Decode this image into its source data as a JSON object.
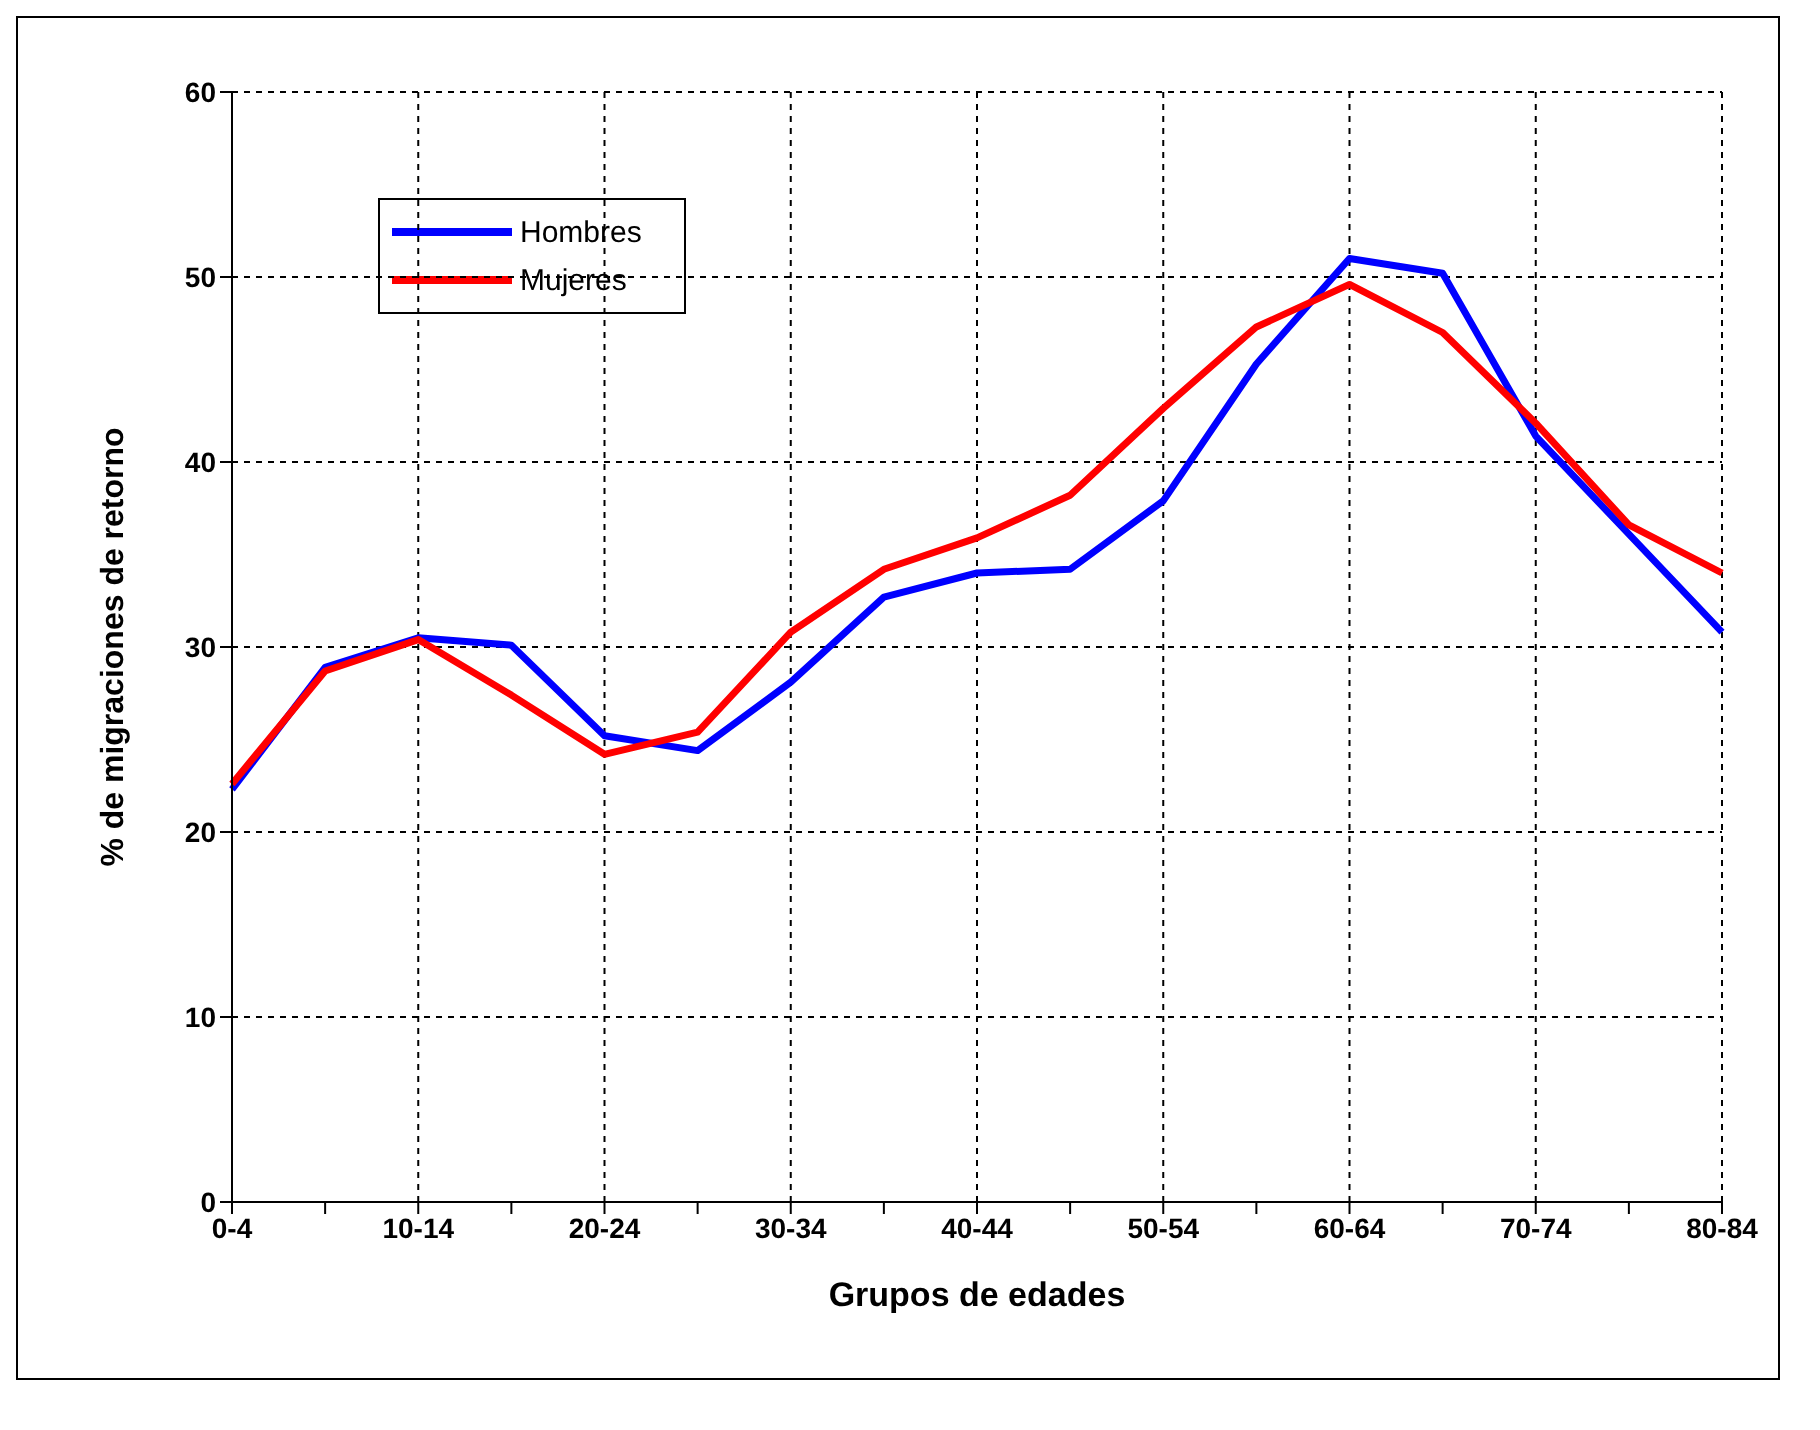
{
  "chart_data": {
    "type": "line",
    "xlabel": "Grupos de edades",
    "ylabel": "% de migraciones de retorno",
    "categories": [
      "0-4",
      null,
      "10-14",
      null,
      "20-24",
      null,
      "30-34",
      null,
      "40-44",
      null,
      "50-54",
      null,
      "60-64",
      null,
      "70-74",
      null,
      "80-84"
    ],
    "series": [
      {
        "name": "Hombres",
        "color": "#0000ff",
        "values": [
          22.3,
          28.9,
          30.5,
          30.1,
          25.2,
          24.4,
          28.1,
          32.7,
          34.0,
          34.2,
          37.9,
          45.3,
          51.0,
          50.2,
          41.4,
          36.1,
          30.8
        ]
      },
      {
        "name": "Mujeres",
        "color": "#ff0000",
        "values": [
          22.6,
          28.7,
          30.4,
          27.4,
          24.2,
          25.4,
          30.8,
          34.2,
          35.9,
          38.2,
          42.9,
          47.3,
          49.6,
          47.0,
          42.1,
          36.6,
          34.0
        ]
      }
    ],
    "ylim": [
      0,
      60
    ],
    "yticks": [
      0,
      10,
      20,
      30,
      40,
      50,
      60
    ],
    "grid": true,
    "legend": "top left",
    "marker": "none",
    "line_style": "solid"
  }
}
